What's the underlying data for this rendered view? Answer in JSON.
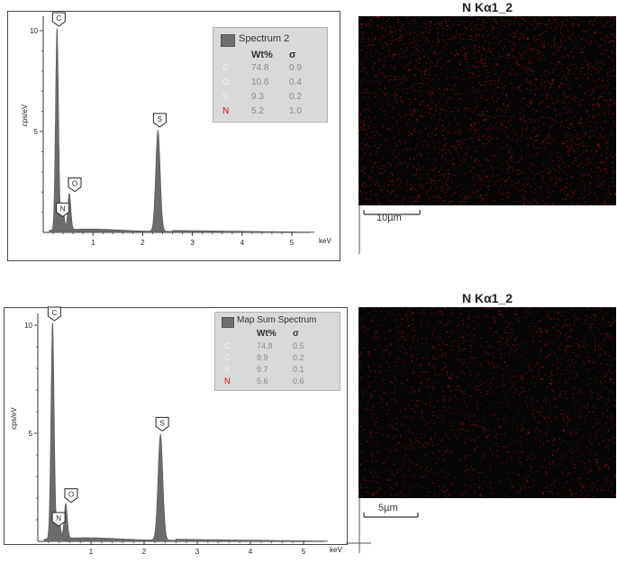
{
  "chart_data": [
    {
      "type": "line",
      "ylabel": "cps/eV",
      "xlabel": "keV",
      "xlim": [
        0,
        5.7
      ],
      "ylim": [
        0,
        11
      ],
      "xticks": [
        "1",
        "2",
        "3",
        "4",
        "5"
      ],
      "yticks": [
        "5",
        "10"
      ],
      "peaks": [
        {
          "label": "C",
          "x": 0.277,
          "y": 10.0
        },
        {
          "label": "N",
          "x": 0.392,
          "y": 1.1
        },
        {
          "label": "O",
          "x": 0.525,
          "y": 1.8
        },
        {
          "label": "S",
          "x": 2.307,
          "y": 5.0
        }
      ],
      "legend": {
        "title": "Spectrum 2",
        "headers": [
          "Wt%",
          "σ"
        ],
        "rows": [
          {
            "element": "C",
            "wt": "74.8",
            "sigma": "0.9"
          },
          {
            "element": "O",
            "wt": "10.6",
            "sigma": "0.4"
          },
          {
            "element": "S",
            "wt": "9.3",
            "sigma": "0.2"
          },
          {
            "element": "N",
            "wt": "5.2",
            "sigma": "1.0"
          }
        ]
      }
    },
    {
      "type": "line",
      "ylabel": "cps/eV",
      "xlabel": "keV",
      "xlim": [
        0,
        5.7
      ],
      "ylim": [
        0,
        11
      ],
      "xticks": [
        "1",
        "2",
        "3",
        "4",
        "5"
      ],
      "yticks": [
        "5",
        "10"
      ],
      "peaks": [
        {
          "label": "C",
          "x": 0.277,
          "y": 10.0
        },
        {
          "label": "N",
          "x": 0.392,
          "y": 1.0
        },
        {
          "label": "O",
          "x": 0.525,
          "y": 1.6
        },
        {
          "label": "S",
          "x": 2.307,
          "y": 4.9
        }
      ],
      "legend": {
        "title": "Map Sum Spectrum",
        "headers": [
          "Wt%",
          "σ"
        ],
        "rows": [
          {
            "element": "C",
            "wt": "74.8",
            "sigma": "0.5"
          },
          {
            "element": "O",
            "wt": "9.9",
            "sigma": "0.2"
          },
          {
            "element": "S",
            "wt": "9.7",
            "sigma": "0.1"
          },
          {
            "element": "N",
            "wt": "5.6",
            "sigma": "0.6"
          }
        ]
      }
    }
  ],
  "maps": [
    {
      "title": "N Kα1_2",
      "scale_label": "10µm",
      "dot_color": "#e01010",
      "density": 0.045
    },
    {
      "title": "N Kα1_2",
      "scale_label": "5µm",
      "dot_color": "#e01010",
      "density": 0.03
    }
  ],
  "colors": {
    "fill": "#6b6b6b",
    "highlight_element": "#e00000"
  }
}
